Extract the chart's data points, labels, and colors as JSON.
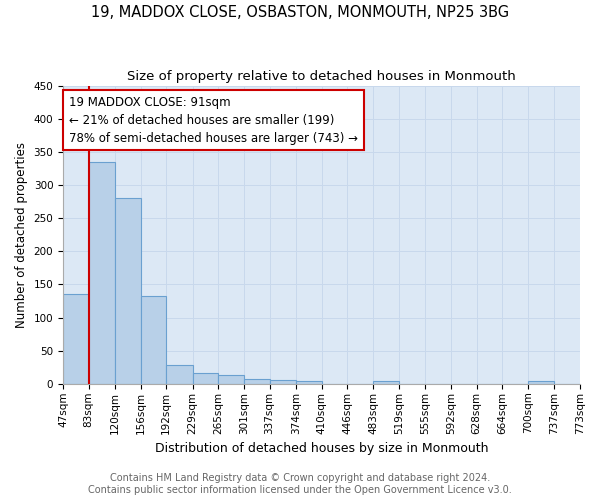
{
  "title1": "19, MADDOX CLOSE, OSBASTON, MONMOUTH, NP25 3BG",
  "title2": "Size of property relative to detached houses in Monmouth",
  "xlabel": "Distribution of detached houses by size in Monmouth",
  "ylabel": "Number of detached properties",
  "footer1": "Contains HM Land Registry data © Crown copyright and database right 2024.",
  "footer2": "Contains public sector information licensed under the Open Government Licence v3.0.",
  "annotation_line1": "19 MADDOX CLOSE: 91sqm",
  "annotation_line2": "← 21% of detached houses are smaller (199)",
  "annotation_line3": "78% of semi-detached houses are larger (743) →",
  "bin_edges": [
    47,
    83,
    120,
    156,
    192,
    229,
    265,
    301,
    337,
    374,
    410,
    446,
    483,
    519,
    555,
    592,
    628,
    664,
    700,
    737,
    773
  ],
  "bin_counts": [
    135,
    335,
    280,
    133,
    29,
    16,
    13,
    7,
    6,
    5,
    0,
    0,
    4,
    0,
    0,
    0,
    0,
    0,
    4,
    0
  ],
  "property_bin_edge": 83,
  "bar_color": "#b8d0e8",
  "bar_edge_color": "#6aa0d0",
  "vline_color": "#cc0000",
  "annotation_box_color": "#cc0000",
  "background_color": "#ffffff",
  "grid_color": "#c8d8ec",
  "ax_bg_color": "#dce8f5",
  "ylim": [
    0,
    450
  ],
  "title1_fontsize": 10.5,
  "title2_fontsize": 9.5,
  "xlabel_fontsize": 9,
  "ylabel_fontsize": 8.5,
  "annotation_fontsize": 8.5,
  "footer_fontsize": 7,
  "tick_fontsize": 7.5
}
